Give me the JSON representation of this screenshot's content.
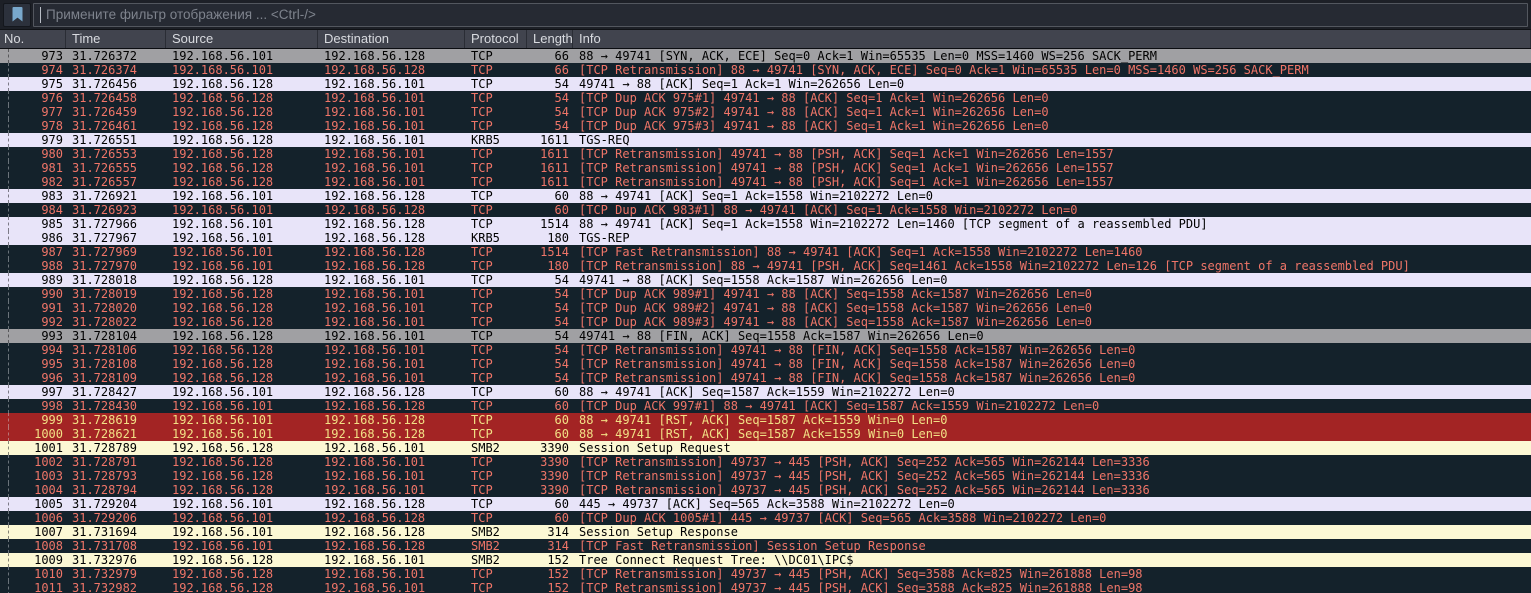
{
  "filter_bar": {
    "placeholder": "Примените фильтр отображения ... <Ctrl-/>",
    "bookmark_icon": "bookmark-icon"
  },
  "columns": [
    {
      "label": "No."
    },
    {
      "label": "Time"
    },
    {
      "label": "Source"
    },
    {
      "label": "Destination"
    },
    {
      "label": "Protocol"
    },
    {
      "label": "Length"
    },
    {
      "label": "Info"
    }
  ],
  "colors": {
    "bad_bg": "#14222b",
    "bad_fg": "#ef7568",
    "tcp_bg": "#e8e4f9",
    "tcp_fg": "#000000",
    "smb_bg": "#fcf8d4",
    "smb_fg": "#000000",
    "rst_bg": "#a32424",
    "rst_fg": "#f2e085",
    "marked_bg": "#a0a0a3",
    "marked_fg": "#000000"
  },
  "packets": [
    {
      "no": "973",
      "time": "31.726372",
      "source": "192.168.56.101",
      "destination": "192.168.56.128",
      "protocol": "TCP",
      "length": "66",
      "info": "88 → 49741 [SYN, ACK, ECE] Seq=0 Ack=1 Win=65535 Len=0 MSS=1460 WS=256 SACK_PERM",
      "type": "marked"
    },
    {
      "no": "974",
      "time": "31.726374",
      "source": "192.168.56.101",
      "destination": "192.168.56.128",
      "protocol": "TCP",
      "length": "66",
      "info": "[TCP Retransmission] 88 → 49741 [SYN, ACK, ECE] Seq=0 Ack=1 Win=65535 Len=0 MSS=1460 WS=256 SACK_PERM",
      "type": "bad"
    },
    {
      "no": "975",
      "time": "31.726456",
      "source": "192.168.56.128",
      "destination": "192.168.56.101",
      "protocol": "TCP",
      "length": "54",
      "info": "49741 → 88 [ACK] Seq=1 Ack=1 Win=262656 Len=0",
      "type": "tcp"
    },
    {
      "no": "976",
      "time": "31.726458",
      "source": "192.168.56.128",
      "destination": "192.168.56.101",
      "protocol": "TCP",
      "length": "54",
      "info": "[TCP Dup ACK 975#1] 49741 → 88 [ACK] Seq=1 Ack=1 Win=262656 Len=0",
      "type": "bad"
    },
    {
      "no": "977",
      "time": "31.726459",
      "source": "192.168.56.128",
      "destination": "192.168.56.101",
      "protocol": "TCP",
      "length": "54",
      "info": "[TCP Dup ACK 975#2] 49741 → 88 [ACK] Seq=1 Ack=1 Win=262656 Len=0",
      "type": "bad"
    },
    {
      "no": "978",
      "time": "31.726461",
      "source": "192.168.56.128",
      "destination": "192.168.56.101",
      "protocol": "TCP",
      "length": "54",
      "info": "[TCP Dup ACK 975#3] 49741 → 88 [ACK] Seq=1 Ack=1 Win=262656 Len=0",
      "type": "bad"
    },
    {
      "no": "979",
      "time": "31.726551",
      "source": "192.168.56.128",
      "destination": "192.168.56.101",
      "protocol": "KRB5",
      "length": "1611",
      "info": "TGS-REQ",
      "type": "tcp"
    },
    {
      "no": "980",
      "time": "31.726553",
      "source": "192.168.56.128",
      "destination": "192.168.56.101",
      "protocol": "TCP",
      "length": "1611",
      "info": "[TCP Retransmission] 49741 → 88 [PSH, ACK] Seq=1 Ack=1 Win=262656 Len=1557",
      "type": "bad"
    },
    {
      "no": "981",
      "time": "31.726555",
      "source": "192.168.56.128",
      "destination": "192.168.56.101",
      "protocol": "TCP",
      "length": "1611",
      "info": "[TCP Retransmission] 49741 → 88 [PSH, ACK] Seq=1 Ack=1 Win=262656 Len=1557",
      "type": "bad"
    },
    {
      "no": "982",
      "time": "31.726557",
      "source": "192.168.56.128",
      "destination": "192.168.56.101",
      "protocol": "TCP",
      "length": "1611",
      "info": "[TCP Retransmission] 49741 → 88 [PSH, ACK] Seq=1 Ack=1 Win=262656 Len=1557",
      "type": "bad"
    },
    {
      "no": "983",
      "time": "31.726921",
      "source": "192.168.56.101",
      "destination": "192.168.56.128",
      "protocol": "TCP",
      "length": "60",
      "info": "88 → 49741 [ACK] Seq=1 Ack=1558 Win=2102272 Len=0",
      "type": "tcp"
    },
    {
      "no": "984",
      "time": "31.726923",
      "source": "192.168.56.101",
      "destination": "192.168.56.128",
      "protocol": "TCP",
      "length": "60",
      "info": "[TCP Dup ACK 983#1] 88 → 49741 [ACK] Seq=1 Ack=1558 Win=2102272 Len=0",
      "type": "bad"
    },
    {
      "no": "985",
      "time": "31.727966",
      "source": "192.168.56.101",
      "destination": "192.168.56.128",
      "protocol": "TCP",
      "length": "1514",
      "info": "88 → 49741 [ACK] Seq=1 Ack=1558 Win=2102272 Len=1460 [TCP segment of a reassembled PDU]",
      "type": "tcp"
    },
    {
      "no": "986",
      "time": "31.727967",
      "source": "192.168.56.101",
      "destination": "192.168.56.128",
      "protocol": "KRB5",
      "length": "180",
      "info": "TGS-REP",
      "type": "tcp"
    },
    {
      "no": "987",
      "time": "31.727969",
      "source": "192.168.56.101",
      "destination": "192.168.56.128",
      "protocol": "TCP",
      "length": "1514",
      "info": "[TCP Fast Retransmission] 88 → 49741 [ACK] Seq=1 Ack=1558 Win=2102272 Len=1460",
      "type": "bad"
    },
    {
      "no": "988",
      "time": "31.727970",
      "source": "192.168.56.101",
      "destination": "192.168.56.128",
      "protocol": "TCP",
      "length": "180",
      "info": "[TCP Retransmission] 88 → 49741 [PSH, ACK] Seq=1461 Ack=1558 Win=2102272 Len=126 [TCP segment of a reassembled PDU]",
      "type": "bad"
    },
    {
      "no": "989",
      "time": "31.728018",
      "source": "192.168.56.128",
      "destination": "192.168.56.101",
      "protocol": "TCP",
      "length": "54",
      "info": "49741 → 88 [ACK] Seq=1558 Ack=1587 Win=262656 Len=0",
      "type": "tcp"
    },
    {
      "no": "990",
      "time": "31.728019",
      "source": "192.168.56.128",
      "destination": "192.168.56.101",
      "protocol": "TCP",
      "length": "54",
      "info": "[TCP Dup ACK 989#1] 49741 → 88 [ACK] Seq=1558 Ack=1587 Win=262656 Len=0",
      "type": "bad"
    },
    {
      "no": "991",
      "time": "31.728020",
      "source": "192.168.56.128",
      "destination": "192.168.56.101",
      "protocol": "TCP",
      "length": "54",
      "info": "[TCP Dup ACK 989#2] 49741 → 88 [ACK] Seq=1558 Ack=1587 Win=262656 Len=0",
      "type": "bad"
    },
    {
      "no": "992",
      "time": "31.728022",
      "source": "192.168.56.128",
      "destination": "192.168.56.101",
      "protocol": "TCP",
      "length": "54",
      "info": "[TCP Dup ACK 989#3] 49741 → 88 [ACK] Seq=1558 Ack=1587 Win=262656 Len=0",
      "type": "bad"
    },
    {
      "no": "993",
      "time": "31.728104",
      "source": "192.168.56.128",
      "destination": "192.168.56.101",
      "protocol": "TCP",
      "length": "54",
      "info": "49741 → 88 [FIN, ACK] Seq=1558 Ack=1587 Win=262656 Len=0",
      "type": "marked"
    },
    {
      "no": "994",
      "time": "31.728106",
      "source": "192.168.56.128",
      "destination": "192.168.56.101",
      "protocol": "TCP",
      "length": "54",
      "info": "[TCP Retransmission] 49741 → 88 [FIN, ACK] Seq=1558 Ack=1587 Win=262656 Len=0",
      "type": "bad"
    },
    {
      "no": "995",
      "time": "31.728108",
      "source": "192.168.56.128",
      "destination": "192.168.56.101",
      "protocol": "TCP",
      "length": "54",
      "info": "[TCP Retransmission] 49741 → 88 [FIN, ACK] Seq=1558 Ack=1587 Win=262656 Len=0",
      "type": "bad"
    },
    {
      "no": "996",
      "time": "31.728109",
      "source": "192.168.56.128",
      "destination": "192.168.56.101",
      "protocol": "TCP",
      "length": "54",
      "info": "[TCP Retransmission] 49741 → 88 [FIN, ACK] Seq=1558 Ack=1587 Win=262656 Len=0",
      "type": "bad"
    },
    {
      "no": "997",
      "time": "31.728427",
      "source": "192.168.56.101",
      "destination": "192.168.56.128",
      "protocol": "TCP",
      "length": "60",
      "info": "88 → 49741 [ACK] Seq=1587 Ack=1559 Win=2102272 Len=0",
      "type": "tcp"
    },
    {
      "no": "998",
      "time": "31.728430",
      "source": "192.168.56.101",
      "destination": "192.168.56.128",
      "protocol": "TCP",
      "length": "60",
      "info": "[TCP Dup ACK 997#1] 88 → 49741 [ACK] Seq=1587 Ack=1559 Win=2102272 Len=0",
      "type": "bad"
    },
    {
      "no": "999",
      "time": "31.728619",
      "source": "192.168.56.101",
      "destination": "192.168.56.128",
      "protocol": "TCP",
      "length": "60",
      "info": "88 → 49741 [RST, ACK] Seq=1587 Ack=1559 Win=0 Len=0",
      "type": "rst"
    },
    {
      "no": "1000",
      "time": "31.728621",
      "source": "192.168.56.101",
      "destination": "192.168.56.128",
      "protocol": "TCP",
      "length": "60",
      "info": "88 → 49741 [RST, ACK] Seq=1587 Ack=1559 Win=0 Len=0",
      "type": "rst"
    },
    {
      "no": "1001",
      "time": "31.728789",
      "source": "192.168.56.128",
      "destination": "192.168.56.101",
      "protocol": "SMB2",
      "length": "3390",
      "info": "Session Setup Request",
      "type": "smb"
    },
    {
      "no": "1002",
      "time": "31.728791",
      "source": "192.168.56.128",
      "destination": "192.168.56.101",
      "protocol": "TCP",
      "length": "3390",
      "info": "[TCP Retransmission] 49737 → 445 [PSH, ACK] Seq=252 Ack=565 Win=262144 Len=3336",
      "type": "bad"
    },
    {
      "no": "1003",
      "time": "31.728793",
      "source": "192.168.56.128",
      "destination": "192.168.56.101",
      "protocol": "TCP",
      "length": "3390",
      "info": "[TCP Retransmission] 49737 → 445 [PSH, ACK] Seq=252 Ack=565 Win=262144 Len=3336",
      "type": "bad"
    },
    {
      "no": "1004",
      "time": "31.728794",
      "source": "192.168.56.128",
      "destination": "192.168.56.101",
      "protocol": "TCP",
      "length": "3390",
      "info": "[TCP Retransmission] 49737 → 445 [PSH, ACK] Seq=252 Ack=565 Win=262144 Len=3336",
      "type": "bad"
    },
    {
      "no": "1005",
      "time": "31.729204",
      "source": "192.168.56.101",
      "destination": "192.168.56.128",
      "protocol": "TCP",
      "length": "60",
      "info": "445 → 49737 [ACK] Seq=565 Ack=3588 Win=2102272 Len=0",
      "type": "tcp"
    },
    {
      "no": "1006",
      "time": "31.729206",
      "source": "192.168.56.101",
      "destination": "192.168.56.128",
      "protocol": "TCP",
      "length": "60",
      "info": "[TCP Dup ACK 1005#1] 445 → 49737 [ACK] Seq=565 Ack=3588 Win=2102272 Len=0",
      "type": "bad"
    },
    {
      "no": "1007",
      "time": "31.731694",
      "source": "192.168.56.101",
      "destination": "192.168.56.128",
      "protocol": "SMB2",
      "length": "314",
      "info": "Session Setup Response",
      "type": "smb"
    },
    {
      "no": "1008",
      "time": "31.731708",
      "source": "192.168.56.101",
      "destination": "192.168.56.128",
      "protocol": "SMB2",
      "length": "314",
      "info": "[TCP Fast Retransmission] Session Setup Response",
      "type": "bad"
    },
    {
      "no": "1009",
      "time": "31.732976",
      "source": "192.168.56.128",
      "destination": "192.168.56.101",
      "protocol": "SMB2",
      "length": "152",
      "info": "Tree Connect Request Tree: \\\\DC01\\IPC$",
      "type": "smb"
    },
    {
      "no": "1010",
      "time": "31.732979",
      "source": "192.168.56.128",
      "destination": "192.168.56.101",
      "protocol": "TCP",
      "length": "152",
      "info": "[TCP Retransmission] 49737 → 445 [PSH, ACK] Seq=3588 Ack=825 Win=261888 Len=98",
      "type": "bad"
    },
    {
      "no": "1011",
      "time": "31.732982",
      "source": "192.168.56.128",
      "destination": "192.168.56.101",
      "protocol": "TCP",
      "length": "152",
      "info": "[TCP Retransmission] 49737 → 445 [PSH, ACK] Seq=3588 Ack=825 Win=261888 Len=98",
      "type": "bad"
    }
  ]
}
